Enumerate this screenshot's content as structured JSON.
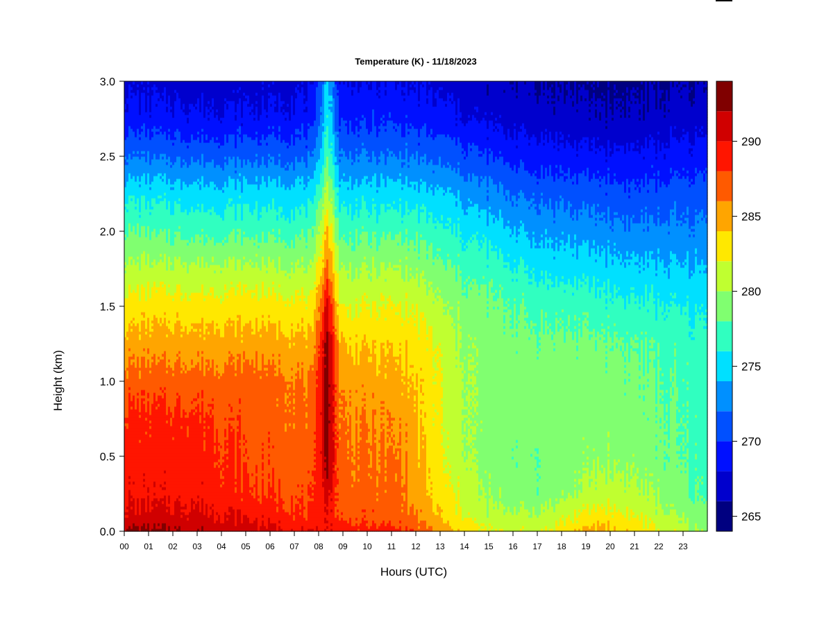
{
  "chart_data": {
    "type": "heatmap",
    "title": "Temperature (K) - 11/18/2023",
    "xlabel": "Hours (UTC)",
    "ylabel": "Height (km)",
    "xlim": [
      0,
      24
    ],
    "ylim": [
      0,
      3
    ],
    "x_ticks": [
      "00",
      "01",
      "02",
      "03",
      "04",
      "05",
      "06",
      "07",
      "08",
      "09",
      "10",
      "11",
      "12",
      "13",
      "14",
      "15",
      "16",
      "17",
      "18",
      "19",
      "20",
      "21",
      "22",
      "23"
    ],
    "y_ticks": [
      "0.0",
      "0.5",
      "1.0",
      "1.5",
      "2.0",
      "2.5",
      "3.0"
    ],
    "colorbar": {
      "levels": [
        264,
        266,
        268,
        270,
        272,
        274,
        276,
        278,
        280,
        282,
        284,
        286,
        288,
        290,
        292,
        294
      ],
      "colors": [
        "#000080",
        "#0000cd",
        "#0010ff",
        "#0050ff",
        "#0090ff",
        "#00e0ff",
        "#30ffc0",
        "#80ff70",
        "#c0ff30",
        "#ffe800",
        "#ffa500",
        "#ff5a00",
        "#ff1500",
        "#d00000",
        "#800000"
      ],
      "tick_labels": [
        "265",
        "270",
        "275",
        "280",
        "285",
        "290"
      ],
      "tick_values": [
        265,
        270,
        275,
        280,
        285,
        290
      ]
    },
    "profiles": [
      {
        "hour": 0,
        "heights": [
          0,
          0.1,
          0.25,
          0.5,
          0.75,
          1.0,
          1.25,
          1.5,
          1.75,
          2.0,
          2.25,
          2.5,
          2.75,
          3.0
        ],
        "temps": [
          292.5,
          290.5,
          289.5,
          289.0,
          288.5,
          287.0,
          285.0,
          283.0,
          280.5,
          278.0,
          275.5,
          272.0,
          269.0,
          267.5
        ]
      },
      {
        "hour": 3,
        "heights": [
          0,
          0.1,
          0.25,
          0.5,
          0.75,
          1.0,
          1.25,
          1.5,
          1.75,
          2.0,
          2.25,
          2.5,
          2.75,
          3.0
        ],
        "temps": [
          292.0,
          290.5,
          289.5,
          289.0,
          288.5,
          287.0,
          285.0,
          283.0,
          280.5,
          277.5,
          275.0,
          271.5,
          268.5,
          267.0
        ]
      },
      {
        "hour": 5.5,
        "heights": [
          0,
          0.1,
          0.25,
          0.5,
          0.75,
          1.0,
          1.25,
          1.5,
          1.75,
          2.0,
          2.25,
          2.5,
          2.75,
          3.0
        ],
        "temps": [
          291.0,
          289.5,
          288.0,
          287.5,
          287.0,
          287.0,
          285.0,
          283.0,
          280.5,
          277.5,
          275.0,
          271.5,
          268.5,
          267.0
        ]
      },
      {
        "hour": 7.8,
        "heights": [
          0,
          0.1,
          0.25,
          0.5,
          0.75,
          1.0,
          1.25,
          1.5,
          1.75,
          2.0,
          2.25,
          2.5,
          2.75,
          3.0
        ],
        "temps": [
          289.5,
          288.0,
          287.5,
          287.0,
          286.5,
          286.0,
          284.5,
          282.5,
          280.0,
          277.5,
          275.0,
          271.5,
          269.0,
          267.5
        ]
      },
      {
        "hour": 8.35,
        "heights": [
          0,
          0.1,
          0.25,
          0.5,
          0.75,
          1.0,
          1.25,
          1.5,
          1.75,
          2.0,
          2.25,
          2.5,
          2.75,
          3.0
        ],
        "temps": [
          290.0,
          290.0,
          291.0,
          293.0,
          293.5,
          293.5,
          293.0,
          291.0,
          287.0,
          284.5,
          281.0,
          278.0,
          276.0,
          275.0
        ]
      },
      {
        "hour": 8.9,
        "heights": [
          0,
          0.1,
          0.25,
          0.5,
          0.75,
          1.0,
          1.25,
          1.5,
          1.75,
          2.0,
          2.25,
          2.5,
          2.75,
          3.0
        ],
        "temps": [
          289.0,
          287.5,
          287.0,
          286.5,
          286.0,
          285.5,
          284.0,
          282.0,
          280.0,
          277.5,
          275.0,
          272.0,
          269.5,
          268.0
        ]
      },
      {
        "hour": 11.5,
        "heights": [
          0,
          0.1,
          0.25,
          0.5,
          0.75,
          1.0,
          1.25,
          1.5,
          1.75,
          2.0,
          2.25,
          2.5,
          2.75,
          3.0
        ],
        "temps": [
          288.5,
          287.0,
          286.5,
          286.0,
          285.5,
          284.5,
          283.5,
          282.0,
          280.0,
          277.5,
          275.0,
          272.0,
          269.5,
          268.0
        ]
      },
      {
        "hour": 12.5,
        "heights": [
          0,
          0.1,
          0.25,
          0.5,
          0.75,
          1.0,
          1.25,
          1.5,
          1.75,
          2.0,
          2.25,
          2.5,
          2.75,
          3.0
        ],
        "temps": [
          286.5,
          285.0,
          284.0,
          283.5,
          283.0,
          283.0,
          282.5,
          281.0,
          279.0,
          277.0,
          274.5,
          271.5,
          269.0,
          267.5
        ]
      },
      {
        "hour": 13.5,
        "heights": [
          0,
          0.1,
          0.25,
          0.5,
          0.75,
          1.0,
          1.25,
          1.5,
          1.75,
          2.0,
          2.25,
          2.5,
          2.75,
          3.0
        ],
        "temps": [
          284.0,
          283.0,
          282.0,
          281.0,
          281.0,
          281.0,
          280.5,
          279.5,
          278.0,
          276.0,
          274.0,
          271.0,
          268.5,
          267.0
        ]
      },
      {
        "hour": 15,
        "heights": [
          0,
          0.1,
          0.25,
          0.5,
          0.75,
          1.0,
          1.25,
          1.5,
          1.75,
          2.0,
          2.25,
          2.5,
          2.75,
          3.0
        ],
        "temps": [
          282.0,
          280.5,
          279.5,
          279.0,
          279.0,
          279.0,
          279.0,
          278.5,
          277.0,
          275.0,
          272.5,
          270.0,
          267.5,
          266.5
        ]
      },
      {
        "hour": 17,
        "heights": [
          0,
          0.1,
          0.25,
          0.5,
          0.75,
          1.0,
          1.25,
          1.5,
          1.75,
          2.0,
          2.25,
          2.5,
          2.75,
          3.0
        ],
        "temps": [
          281.5,
          280.5,
          278.5,
          278.5,
          279.0,
          279.0,
          278.5,
          277.5,
          275.5,
          273.5,
          271.5,
          269.0,
          267.0,
          266.0
        ]
      },
      {
        "hour": 19.5,
        "heights": [
          0,
          0.1,
          0.25,
          0.5,
          0.75,
          1.0,
          1.25,
          1.5,
          1.75,
          2.0,
          2.25,
          2.5,
          2.75,
          3.0
        ],
        "temps": [
          285.0,
          283.0,
          281.0,
          279.5,
          279.0,
          279.0,
          278.5,
          277.0,
          275.0,
          273.0,
          271.0,
          268.5,
          266.5,
          265.5
        ]
      },
      {
        "hour": 21,
        "heights": [
          0,
          0.1,
          0.25,
          0.5,
          0.75,
          1.0,
          1.25,
          1.5,
          1.75,
          2.0,
          2.25,
          2.5,
          2.75,
          3.0
        ],
        "temps": [
          283.5,
          282.0,
          280.5,
          279.5,
          279.0,
          278.5,
          278.0,
          276.5,
          274.5,
          272.5,
          270.5,
          268.5,
          266.5,
          265.5
        ]
      },
      {
        "hour": 24,
        "heights": [
          0,
          0.1,
          0.25,
          0.5,
          0.75,
          1.0,
          1.25,
          1.5,
          1.75,
          2.0,
          2.25,
          2.5,
          2.75,
          3.0
        ],
        "temps": [
          279.5,
          278.5,
          277.5,
          277.0,
          277.0,
          277.0,
          276.5,
          275.5,
          274.0,
          272.5,
          271.0,
          269.0,
          267.0,
          266.0
        ]
      }
    ]
  }
}
